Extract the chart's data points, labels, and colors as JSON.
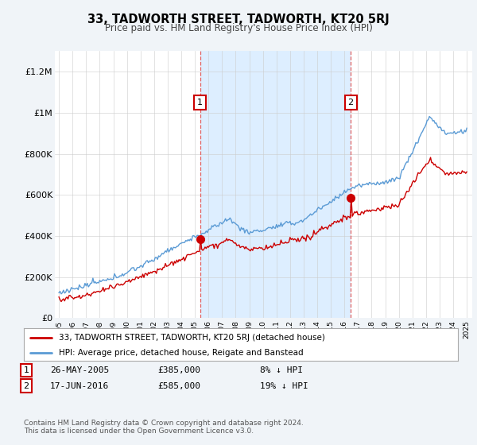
{
  "title": "33, TADWORTH STREET, TADWORTH, KT20 5RJ",
  "subtitle": "Price paid vs. HM Land Registry's House Price Index (HPI)",
  "ylim": [
    0,
    1300000
  ],
  "yticks": [
    0,
    200000,
    400000,
    600000,
    800000,
    1000000,
    1200000
  ],
  "ytick_labels": [
    "£0",
    "£200K",
    "£400K",
    "£600K",
    "£800K",
    "£1M",
    "£1.2M"
  ],
  "hpi_color": "#5b9bd5",
  "price_color": "#cc0000",
  "shade_color": "#ddeeff",
  "sale1_year": 2005.38,
  "sale1_price": 385000,
  "sale1_date": "26-MAY-2005",
  "sale1_label": "8% ↓ HPI",
  "sale2_year": 2016.46,
  "sale2_price": 585000,
  "sale2_date": "17-JUN-2016",
  "sale2_label": "19% ↓ HPI",
  "legend_label_red": "33, TADWORTH STREET, TADWORTH, KT20 5RJ (detached house)",
  "legend_label_blue": "HPI: Average price, detached house, Reigate and Banstead",
  "footer": "Contains HM Land Registry data © Crown copyright and database right 2024.\nThis data is licensed under the Open Government Licence v3.0.",
  "background_color": "#f0f4f8",
  "plot_bg_color": "#ffffff",
  "xstart": 1995,
  "xend": 2025
}
